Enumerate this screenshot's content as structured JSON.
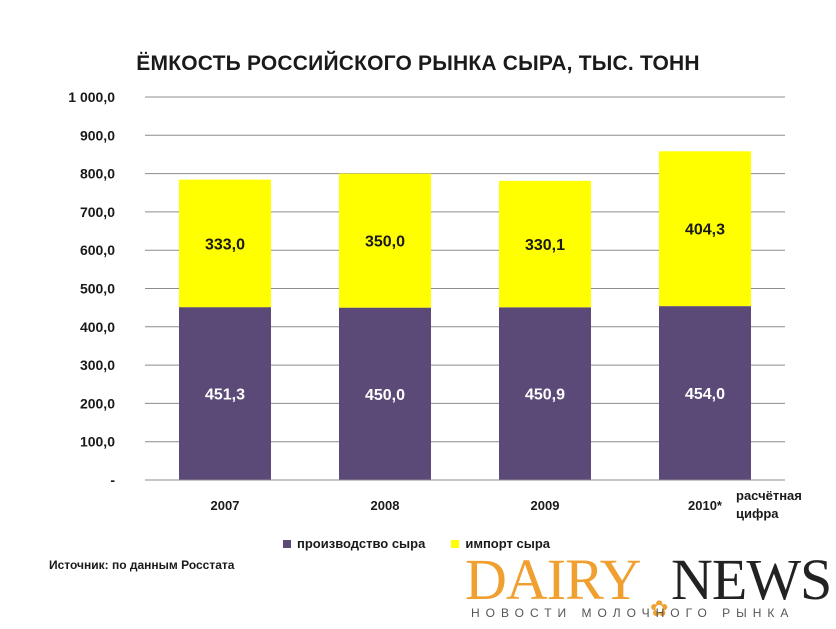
{
  "chart_data": {
    "type": "bar",
    "stacked": true,
    "title": "ЁМКОСТЬ РОССИЙСКОГО РЫНКА СЫРА, ТЫС. ТОНН",
    "categories": [
      "2007",
      "2008",
      "2009",
      "2010*"
    ],
    "series": [
      {
        "name": "производство сыра",
        "color": "#5b4a78",
        "values": [
          451.3,
          450.0,
          450.9,
          454.0
        ],
        "labels": [
          "451,3",
          "450,0",
          "450,9",
          "454,0"
        ]
      },
      {
        "name": "импорт сыра",
        "color": "#ffff00",
        "values": [
          333.0,
          350.0,
          330.1,
          404.3
        ],
        "labels": [
          "333,0",
          "350,0",
          "330,1",
          "404,3"
        ]
      }
    ],
    "ylim": [
      0,
      1000
    ],
    "yticks": [
      0,
      100,
      200,
      300,
      400,
      500,
      600,
      700,
      800,
      900,
      1000
    ],
    "yticklabels": [
      "-",
      "100,0",
      "200,0",
      "300,0",
      "400,0",
      "500,0",
      "600,0",
      "700,0",
      "800,0",
      "900,0",
      "1 000,0"
    ],
    "grid": true,
    "legend": "bottom",
    "note": [
      "расчётная",
      "цифра"
    ]
  },
  "source": "Источник: по данным Росстата",
  "logo": {
    "word1": "DAIRY",
    "word2": "NEWS",
    "tagline": "НОВОСТИ МОЛОЧНОГО РЫНКА"
  }
}
